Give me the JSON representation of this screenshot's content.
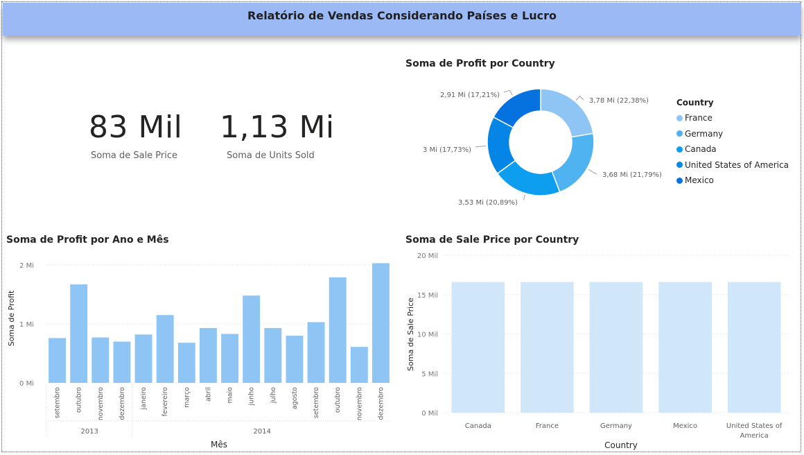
{
  "header": {
    "title": "Relatório de Vendas Considerando Países e Lucro"
  },
  "kpis": [
    {
      "value": "83 Mil",
      "label": "Soma de Sale Price"
    },
    {
      "value": "1,13 Mi",
      "label": "Soma de Units Sold"
    }
  ],
  "colors": {
    "header_bg": "#9bb9f5",
    "bar_profit": "#8ec5f5",
    "bar_sale": "#d0e7fa",
    "france": "#8ec5f5",
    "germany": "#4eb3f0",
    "canada": "#0e9ef0",
    "usa": "#0586e6",
    "mexico": "#0672e0"
  },
  "donut": {
    "title": "Soma de Profit por Country",
    "legend_title": "Country",
    "slices": [
      {
        "name": "France",
        "value": 3.78,
        "label": "3,78 Mi (22,38%)",
        "color": "#8ec5f5"
      },
      {
        "name": "Germany",
        "value": 3.68,
        "label": "3,68 Mi (21,79%)",
        "color": "#4eb3f0"
      },
      {
        "name": "Canada",
        "value": 3.53,
        "label": "3,53 Mi (20,89%)",
        "color": "#0e9ef0"
      },
      {
        "name": "United States of America",
        "value": 3.0,
        "label": "3 Mi (17,73%)",
        "color": "#0586e6"
      },
      {
        "name": "Mexico",
        "value": 2.91,
        "label": "2,91 Mi (17,21%)",
        "color": "#0672e0"
      }
    ]
  },
  "profit_chart": {
    "title": "Soma de Profit por Ano e Mês",
    "ylabel": "Soma de Profit",
    "xlabel": "Mês",
    "ticks": [
      "0 Mi",
      "1 Mi",
      "2 Mi"
    ],
    "groups": [
      {
        "year": "2013",
        "months": [
          "setembro",
          "outubro",
          "novembro",
          "dezembro"
        ]
      },
      {
        "year": "2014",
        "months": [
          "janeiro",
          "fevereiro",
          "março",
          "abril",
          "maio",
          "junho",
          "julho",
          "agosto",
          "setembro",
          "outubro",
          "novembro",
          "dezembro"
        ]
      }
    ]
  },
  "sale_chart": {
    "title": "Soma de Sale Price por Country",
    "ylabel": "Soma de Sale Price",
    "xlabel": "Country",
    "ticks": [
      "0 Mil",
      "5 Mil",
      "10 Mil",
      "15 Mil",
      "20 Mil"
    ]
  },
  "chart_data": [
    {
      "type": "bar",
      "title": "Soma de Profit por Ano e Mês",
      "xlabel": "Mês",
      "ylabel": "Soma de Profit",
      "unit": "Mi",
      "categories": [
        "2013 setembro",
        "2013 outubro",
        "2013 novembro",
        "2013 dezembro",
        "2014 janeiro",
        "2014 fevereiro",
        "2014 março",
        "2014 abril",
        "2014 maio",
        "2014 junho",
        "2014 julho",
        "2014 agosto",
        "2014 setembro",
        "2014 outubro",
        "2014 novembro",
        "2014 dezembro"
      ],
      "values": [
        0.76,
        1.67,
        0.77,
        0.7,
        0.82,
        1.15,
        0.68,
        0.93,
        0.83,
        1.48,
        0.93,
        0.8,
        1.03,
        1.79,
        0.61,
        2.03
      ],
      "ylim": [
        0,
        2.2
      ],
      "grid": true
    },
    {
      "type": "bar",
      "title": "Soma de Sale Price por Country",
      "xlabel": "Country",
      "ylabel": "Soma de Sale Price",
      "unit": "Mil",
      "categories": [
        "Canada",
        "France",
        "Germany",
        "Mexico",
        "United States of America"
      ],
      "values": [
        16.6,
        16.6,
        16.6,
        16.6,
        16.6
      ],
      "ylim": [
        0,
        20
      ],
      "grid": true
    },
    {
      "type": "pie",
      "title": "Soma de Profit por Country",
      "unit": "Mi",
      "categories": [
        "France",
        "Germany",
        "Canada",
        "United States of America",
        "Mexico"
      ],
      "values": [
        3.78,
        3.68,
        3.53,
        3.0,
        2.91
      ],
      "percent": [
        22.38,
        21.79,
        20.89,
        17.73,
        17.21
      ],
      "legend": "right"
    }
  ]
}
